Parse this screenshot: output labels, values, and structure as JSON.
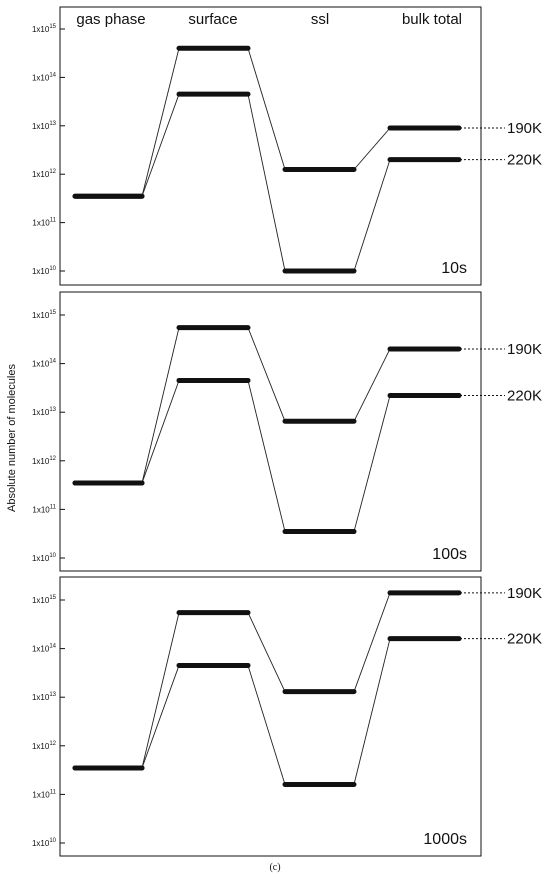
{
  "figure": {
    "ylabel": "Absolute number of molecules",
    "caption": "(c)"
  },
  "chart_data": [
    {
      "type": "line",
      "time_label": "10s",
      "categories": [
        "gas phase",
        "surface",
        "ssl",
        "bulk total"
      ],
      "y_scale": "log",
      "ylim": [
        10000000000.0,
        1000000000000000.0
      ],
      "y_ticks": [
        10,
        11,
        12,
        13,
        14,
        15
      ],
      "series": [
        {
          "name": "190K",
          "values": [
            350000000000.0,
            400000000000000.0,
            1250000000000.0,
            9000000000000.0
          ]
        },
        {
          "name": "220K",
          "values": [
            350000000000.0,
            45000000000000.0,
            10000000000.0,
            2000000000000.0
          ]
        }
      ]
    },
    {
      "type": "line",
      "time_label": "100s",
      "categories": [
        "gas phase",
        "surface",
        "ssl",
        "bulk total"
      ],
      "y_scale": "log",
      "ylim": [
        10000000000.0,
        1000000000000000.0
      ],
      "y_ticks": [
        10,
        11,
        12,
        13,
        14,
        15
      ],
      "series": [
        {
          "name": "190K",
          "values": [
            350000000000.0,
            550000000000000.0,
            6500000000000.0,
            200000000000000.0
          ]
        },
        {
          "name": "220K",
          "values": [
            350000000000.0,
            45000000000000.0,
            35000000000.0,
            22000000000000.0
          ]
        }
      ]
    },
    {
      "type": "line",
      "time_label": "1000s",
      "categories": [
        "gas phase",
        "surface",
        "ssl",
        "bulk total"
      ],
      "y_scale": "log",
      "ylim": [
        10000000000.0,
        1000000000000000.0
      ],
      "y_ticks": [
        10,
        11,
        12,
        13,
        14,
        15
      ],
      "series": [
        {
          "name": "190K",
          "values": [
            350000000000.0,
            550000000000000.0,
            13000000000000.0,
            1400000000000000.0
          ]
        },
        {
          "name": "220K",
          "values": [
            350000000000.0,
            45000000000000.0,
            160000000000.0,
            160000000000000.0
          ]
        }
      ]
    }
  ]
}
